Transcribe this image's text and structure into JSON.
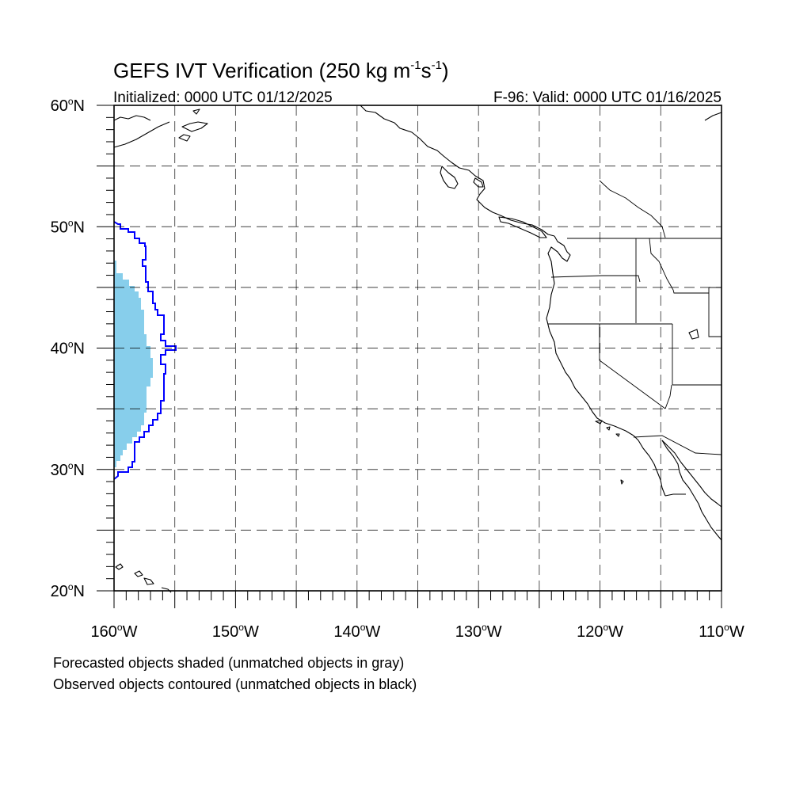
{
  "title": {
    "main": "GEFS IVT Verification (250 kg m",
    "exp1": "-1",
    "mid": "s",
    "exp2": "-1",
    "close": ")"
  },
  "subtitle": {
    "left": "Initialized: 0000 UTC 01/12/2025",
    "right": "F-96: Valid: 0000 UTC 01/16/2025"
  },
  "lat_labels": [
    {
      "deg": "60",
      "hemi": "N"
    },
    {
      "deg": "50",
      "hemi": "N"
    },
    {
      "deg": "40",
      "hemi": "N"
    },
    {
      "deg": "30",
      "hemi": "N"
    },
    {
      "deg": "20",
      "hemi": "N"
    }
  ],
  "lon_labels": [
    {
      "deg": "160",
      "hemi": "W"
    },
    {
      "deg": "150",
      "hemi": "W"
    },
    {
      "deg": "140",
      "hemi": "W"
    },
    {
      "deg": "130",
      "hemi": "W"
    },
    {
      "deg": "120",
      "hemi": "W"
    },
    {
      "deg": "110",
      "hemi": "W"
    }
  ],
  "footnotes": {
    "line1": "Forecasted objects shaded (unmatched objects in gray)",
    "line2": "Observed objects contoured (unmatched objects in black)"
  },
  "colors": {
    "forecast_fill": "#87ceeb",
    "observed_contour": "#0000ff",
    "coastline": "#000000"
  },
  "map": {
    "lon_range": [
      -160,
      -110
    ],
    "lat_range": [
      20,
      60
    ],
    "grid_lines": "dashed"
  }
}
